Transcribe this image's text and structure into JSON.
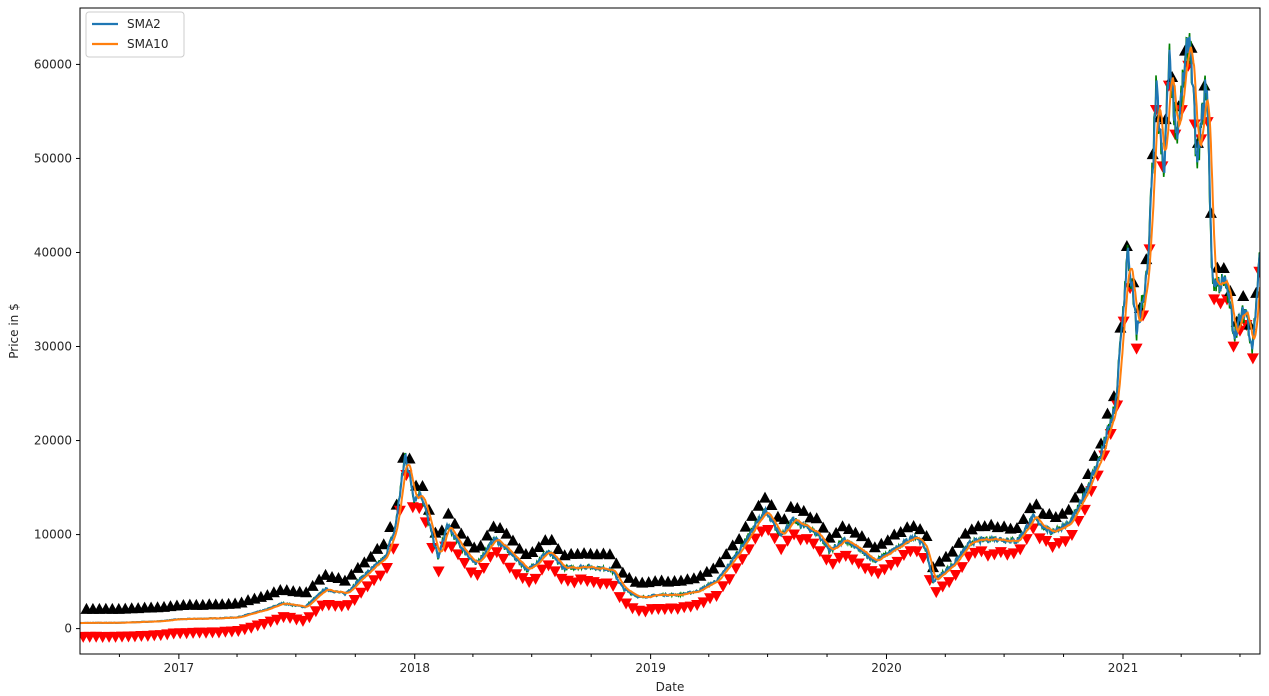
{
  "chart_data": {
    "type": "line",
    "title": "",
    "xlabel": "Date",
    "ylabel": "Price in $",
    "x_range": [
      "2016-08-01",
      "2021-08-01"
    ],
    "ylim": [
      -2700,
      66000
    ],
    "x_tick_labels": [
      "2017",
      "2018",
      "2019",
      "2020",
      "2021"
    ],
    "y_tick_values": [
      0,
      10000,
      20000,
      30000,
      40000,
      50000,
      60000
    ],
    "y_tick_labels": [
      "0",
      "10000",
      "20000",
      "30000",
      "40000",
      "50000",
      "60000"
    ],
    "grid": false,
    "legend": {
      "position": "top-left",
      "entries": [
        {
          "label": "SMA2",
          "color": "#1f77b4"
        },
        {
          "label": "SMA10",
          "color": "#ff7f0e"
        }
      ]
    },
    "markers": {
      "buy_symbol": "black up-triangle",
      "sell_symbol": "red down-triangle",
      "buy_color": "#000000",
      "sell_color": "#ff0000"
    },
    "price_color": "#008000",
    "anchors": [
      [
        "2016-08-01",
        600
      ],
      [
        "2016-10-01",
        620
      ],
      [
        "2016-12-01",
        780
      ],
      [
        "2017-01-01",
        1000
      ],
      [
        "2017-03-01",
        1100
      ],
      [
        "2017-04-01",
        1200
      ],
      [
        "2017-05-15",
        2000
      ],
      [
        "2017-06-10",
        2700
      ],
      [
        "2017-07-15",
        2300
      ],
      [
        "2017-08-15",
        4200
      ],
      [
        "2017-09-15",
        3700
      ],
      [
        "2017-10-15",
        5700
      ],
      [
        "2017-11-15",
        7500
      ],
      [
        "2017-12-01",
        10500
      ],
      [
        "2017-12-17",
        18500
      ],
      [
        "2017-12-31",
        13800
      ],
      [
        "2018-01-10",
        14500
      ],
      [
        "2018-02-06",
        7500
      ],
      [
        "2018-02-20",
        11000
      ],
      [
        "2018-03-10",
        9000
      ],
      [
        "2018-04-05",
        6800
      ],
      [
        "2018-05-05",
        9600
      ],
      [
        "2018-06-25",
        6200
      ],
      [
        "2018-07-25",
        8200
      ],
      [
        "2018-08-20",
        6400
      ],
      [
        "2018-09-20",
        6600
      ],
      [
        "2018-11-01",
        6300
      ],
      [
        "2018-11-20",
        4200
      ],
      [
        "2018-12-15",
        3300
      ],
      [
        "2019-01-15",
        3600
      ],
      [
        "2019-02-15",
        3600
      ],
      [
        "2019-03-15",
        4000
      ],
      [
        "2019-04-15",
        5200
      ],
      [
        "2019-05-15",
        8000
      ],
      [
        "2019-06-26",
        12500
      ],
      [
        "2019-07-20",
        10000
      ],
      [
        "2019-08-10",
        11500
      ],
      [
        "2019-09-15",
        10200
      ],
      [
        "2019-10-05",
        8300
      ],
      [
        "2019-10-28",
        9400
      ],
      [
        "2019-12-15",
        7200
      ],
      [
        "2020-01-20",
        8700
      ],
      [
        "2020-02-15",
        9900
      ],
      [
        "2020-03-01",
        8600
      ],
      [
        "2020-03-13",
        5000
      ],
      [
        "2020-04-15",
        7000
      ],
      [
        "2020-05-10",
        9200
      ],
      [
        "2020-06-15",
        9600
      ],
      [
        "2020-07-20",
        9300
      ],
      [
        "2020-08-15",
        11800
      ],
      [
        "2020-09-10",
        10300
      ],
      [
        "2020-10-10",
        11100
      ],
      [
        "2020-10-25",
        13000
      ],
      [
        "2020-11-25",
        18000
      ],
      [
        "2020-12-20",
        23500
      ],
      [
        "2021-01-08",
        40000
      ],
      [
        "2021-01-22",
        31500
      ],
      [
        "2021-02-08",
        38000
      ],
      [
        "2021-02-21",
        57000
      ],
      [
        "2021-03-05",
        48000
      ],
      [
        "2021-03-13",
        61000
      ],
      [
        "2021-03-25",
        52500
      ],
      [
        "2021-04-14",
        63500
      ],
      [
        "2021-04-25",
        49000
      ],
      [
        "2021-05-10",
        58500
      ],
      [
        "2021-05-19",
        37000
      ],
      [
        "2021-06-10",
        36500
      ],
      [
        "2021-06-22",
        31500
      ],
      [
        "2021-07-10",
        34000
      ],
      [
        "2021-07-20",
        29800
      ],
      [
        "2021-08-01",
        40000
      ]
    ]
  }
}
